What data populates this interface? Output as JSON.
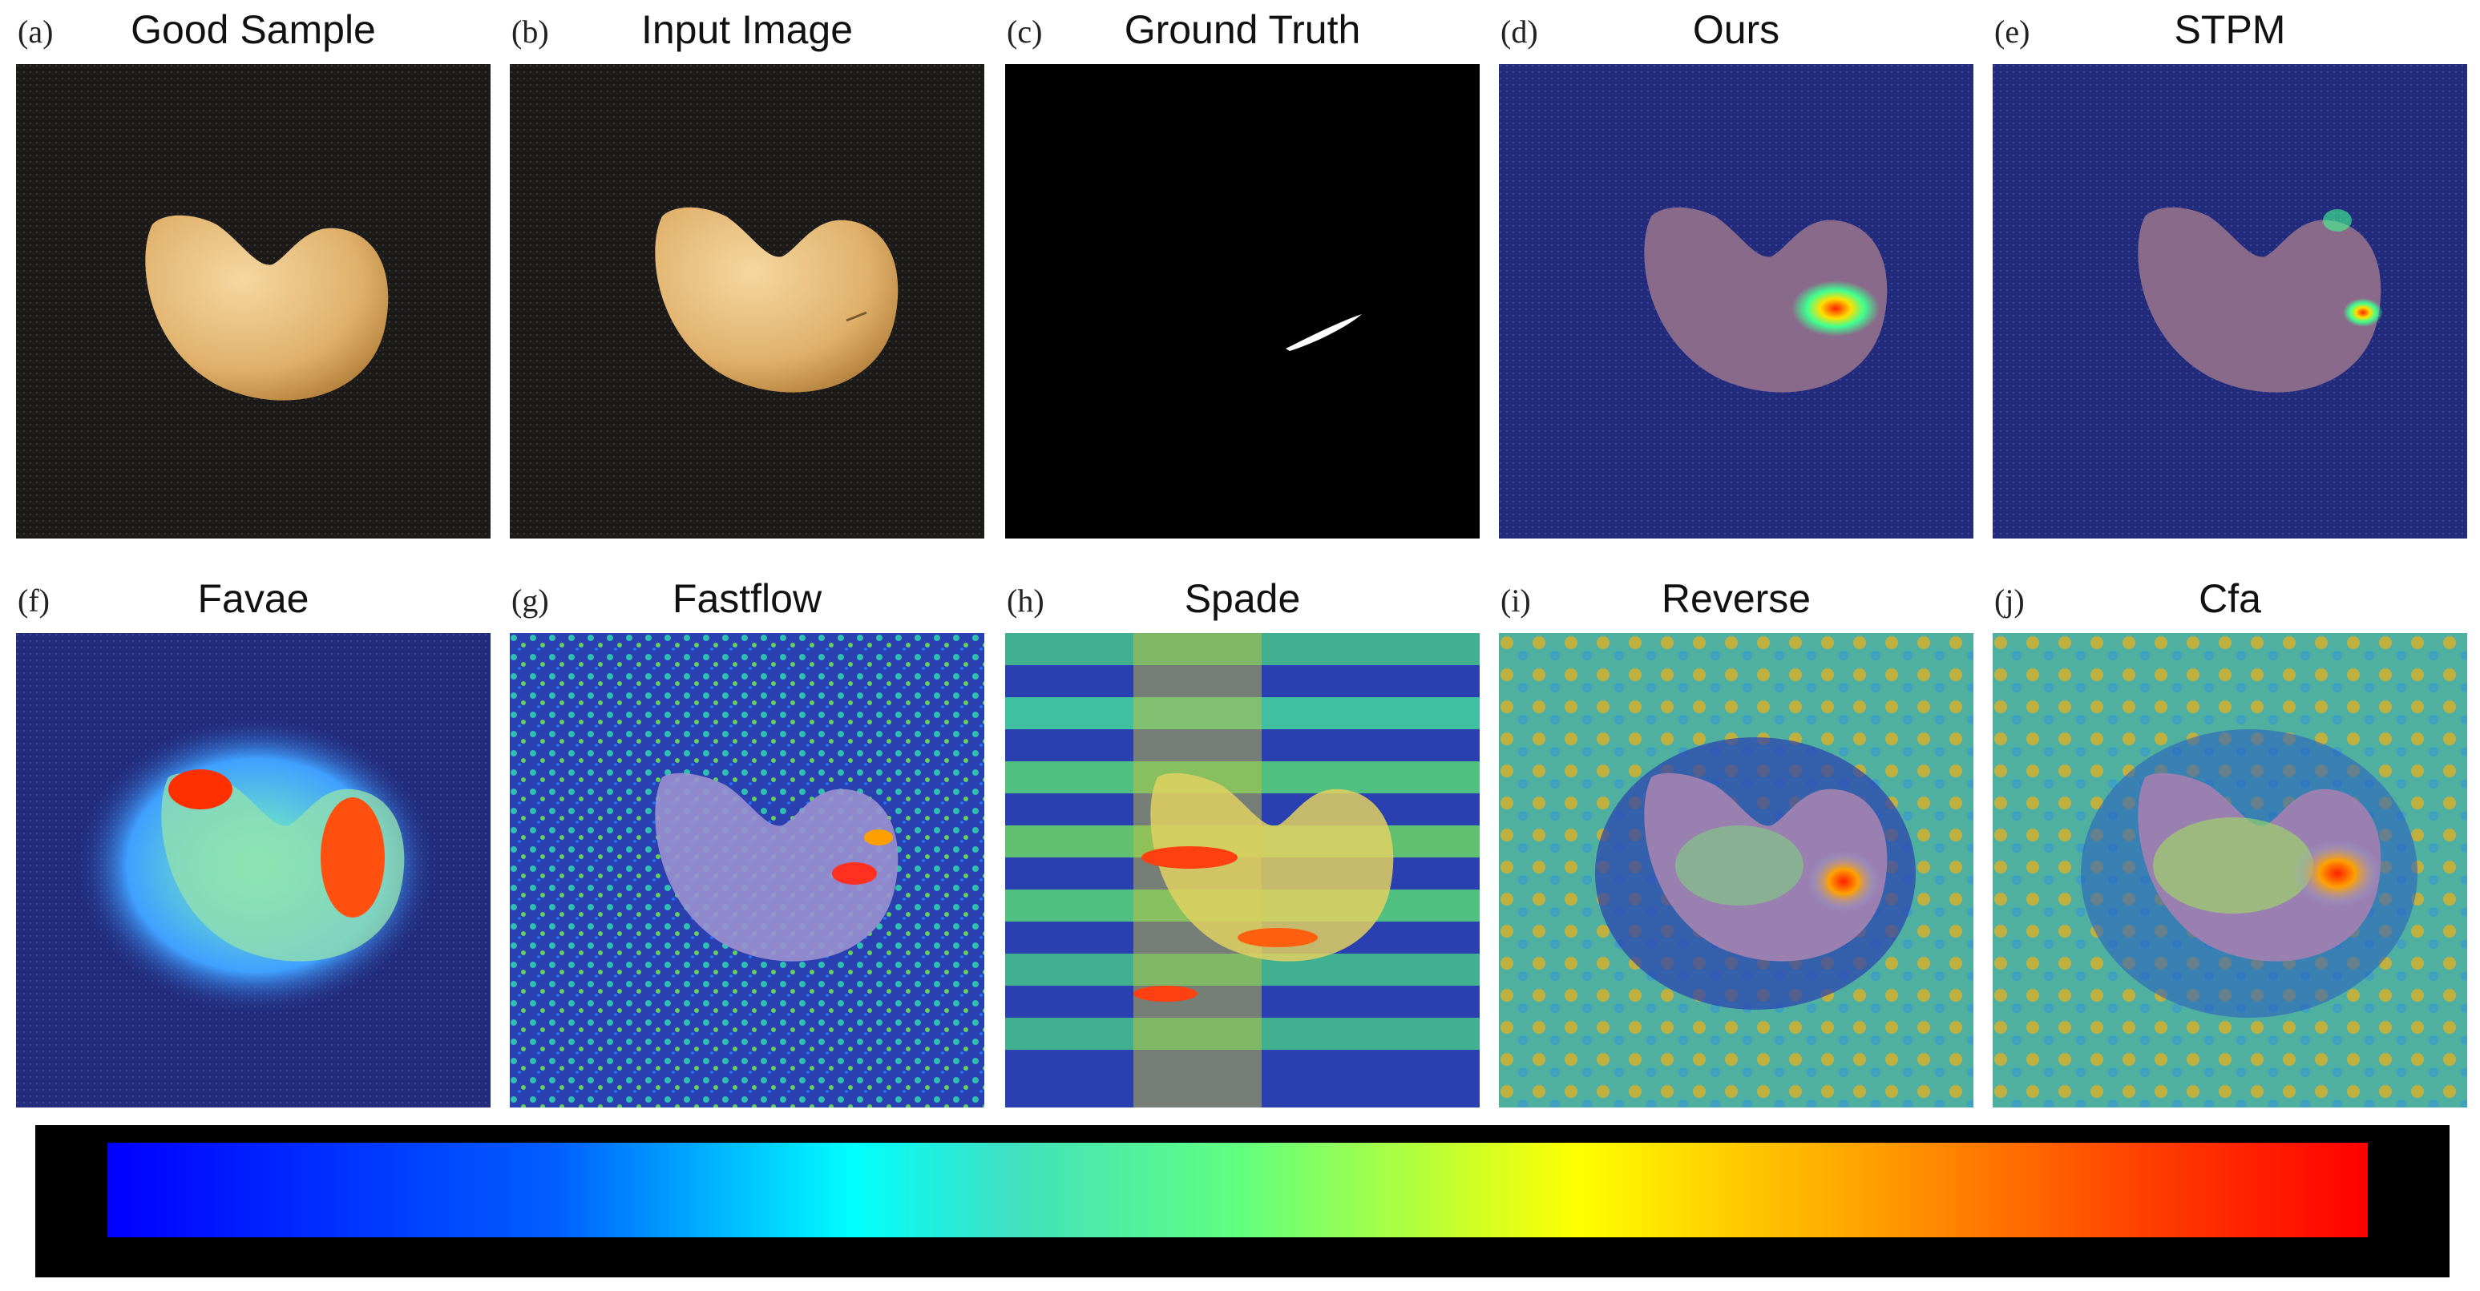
{
  "panels": [
    {
      "letter": "(a)",
      "title": "Good Sample"
    },
    {
      "letter": "(b)",
      "title": "Input Image"
    },
    {
      "letter": "(c)",
      "title": "Ground Truth"
    },
    {
      "letter": "(d)",
      "title": "Ours"
    },
    {
      "letter": "(e)",
      "title": "STPM"
    },
    {
      "letter": "(f)",
      "title": "Favae"
    },
    {
      "letter": "(g)",
      "title": "Fastflow"
    },
    {
      "letter": "(h)",
      "title": "Spade"
    },
    {
      "letter": "(i)",
      "title": "Reverse"
    },
    {
      "letter": "(j)",
      "title": "Cfa"
    }
  ],
  "colorbar": {
    "colors": [
      "#0000ff",
      "#00ffff",
      "#ffff00",
      "#ff0000"
    ]
  }
}
